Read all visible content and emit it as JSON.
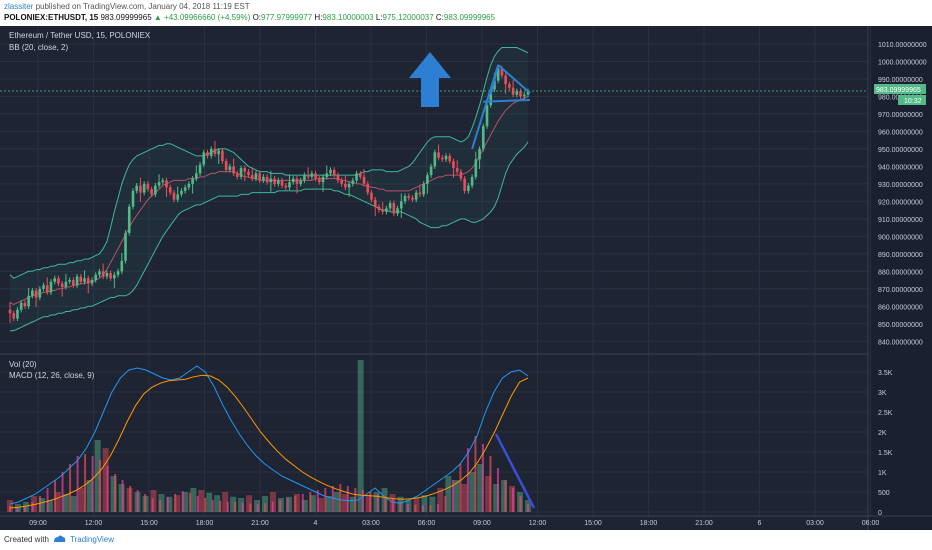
{
  "header": {
    "author": "zlassiter",
    "published_text": "published on TradingView.com, January 04, 2018 11:19 EST",
    "symbol": "POLONIEX:ETHUSDT, 15",
    "last": "983.09999965",
    "change": "▲ +43.09966660 (+4.59%)",
    "o_label": "O:",
    "o_value": "977.97999977",
    "h_label": "H:",
    "h_value": "983.10000003",
    "l_label": "L:",
    "l_value": "975.12000037",
    "c_label": "C:",
    "c_value": "983.09999965"
  },
  "panes": {
    "price": {
      "title": "Ethereum / Tether USD, 15, POLONIEX",
      "indicator": "BB (20, close, 2)",
      "price_tag": "983.09999965",
      "time_tag": "10:32"
    },
    "volume": {
      "title": "Vol (20)",
      "indicator": "MACD (12, 26, close, 9)"
    }
  },
  "footer": {
    "created_with": "Created with",
    "brand": "TradingView"
  },
  "colors": {
    "background": "#1f2433",
    "up": "#53b987",
    "down": "#eb4d5c",
    "bb_band": "#3fb6a0",
    "bb_basis": "#b4536a",
    "macd": "#2196f3",
    "signal": "#ff9800",
    "annotation": "#2e7fd4",
    "hist_pink": "#ea3f9a"
  },
  "annotation": {
    "arrow": "up-arrow-icon"
  },
  "chart_data": [
    {
      "type": "candlestick",
      "pane": "price",
      "ylim": [
        835,
        1018
      ],
      "y_ticks": [
        840,
        850,
        860,
        870,
        880,
        890,
        900,
        910,
        920,
        930,
        940,
        950,
        960,
        970,
        980,
        990,
        1000,
        1010
      ],
      "y_tick_labels": [
        "840.00000000",
        "850.00000000",
        "860.00000000",
        "870.00000000",
        "880.00000000",
        "890.00000000",
        "900.00000000",
        "910.00000000",
        "920.00000000",
        "930.00000000",
        "940.00000000",
        "950.00000000",
        "960.00000000",
        "970.00000000",
        "980.00000000",
        "990.00000000",
        "1000.00000000",
        "1010.00000000"
      ],
      "x_tick_labels": [
        "09:00",
        "12:00",
        "15:00",
        "18:00",
        "21:00",
        "4",
        "03:00",
        "06:00",
        "09:00",
        "12:00",
        "15:00",
        "18:00",
        "21:00",
        "6",
        "03:00",
        "06:00"
      ],
      "closes": [
        856,
        853,
        858,
        862,
        860,
        866,
        869,
        865,
        870,
        872,
        868,
        874,
        876,
        873,
        871,
        874,
        875,
        872,
        877,
        874,
        876,
        873,
        875,
        878,
        880,
        877,
        879,
        876,
        878,
        880,
        886,
        902,
        917,
        926,
        929,
        925,
        930,
        927,
        924,
        929,
        931,
        932,
        928,
        925,
        921,
        924,
        926,
        928,
        930,
        933,
        936,
        941,
        948,
        946,
        950,
        947,
        949,
        943,
        938,
        940,
        936,
        934,
        939,
        937,
        935,
        933,
        936,
        932,
        934,
        931,
        933,
        930,
        932,
        929,
        928,
        931,
        933,
        930,
        932,
        935,
        934,
        936,
        933,
        931,
        934,
        936,
        938,
        935,
        932,
        930,
        928,
        930,
        932,
        936,
        934,
        930,
        925,
        921,
        917,
        915,
        914,
        916,
        919,
        913,
        916,
        920,
        923,
        922,
        921,
        925,
        924,
        930,
        935,
        940,
        948,
        945,
        944,
        946,
        943,
        939,
        937,
        933,
        926,
        929,
        934,
        944,
        950,
        963,
        975,
        984,
        989,
        996,
        992,
        987,
        985,
        981,
        983,
        980,
        981,
        983
      ],
      "bb_upper": [
        878,
        876,
        877,
        878,
        879,
        880,
        880,
        881,
        881,
        882,
        882,
        883,
        883,
        884,
        884,
        884,
        885,
        885,
        886,
        886,
        887,
        887,
        888,
        889,
        890,
        893,
        897,
        905,
        914,
        922,
        930,
        936,
        941,
        944,
        946,
        947,
        948,
        949,
        950,
        951,
        952,
        952,
        953,
        953,
        952,
        951,
        950,
        949,
        948,
        947,
        946,
        946,
        946,
        947,
        948,
        949,
        950,
        950,
        950,
        949,
        948,
        946,
        944,
        942,
        940,
        939,
        938,
        937,
        937,
        937,
        936,
        936,
        936,
        936,
        935,
        935,
        935,
        935,
        935,
        935,
        935,
        935,
        935,
        935,
        935,
        935,
        935,
        935,
        935,
        935,
        935,
        935,
        935,
        935,
        936,
        937,
        937,
        938,
        938,
        938,
        938,
        937,
        937,
        937,
        937,
        938,
        939,
        940,
        942,
        945,
        948,
        951,
        954,
        956,
        957,
        957,
        957,
        957,
        957,
        956,
        955,
        954,
        955,
        957,
        962,
        968,
        975,
        983,
        991,
        998,
        1003,
        1006,
        1008,
        1008,
        1008,
        1008,
        1008,
        1007,
        1006,
        1005
      ],
      "bb_basis": [
        862,
        861,
        862,
        863,
        864,
        865,
        866,
        867,
        867,
        868,
        868,
        869,
        869,
        870,
        870,
        871,
        871,
        872,
        872,
        873,
        873,
        874,
        874,
        875,
        876,
        878,
        881,
        885,
        889,
        893,
        897,
        901,
        905,
        909,
        912,
        915,
        918,
        921,
        923,
        925,
        927,
        929,
        930,
        931,
        932,
        932,
        932,
        932,
        933,
        933,
        933,
        934,
        934,
        935,
        936,
        936,
        937,
        937,
        937,
        937,
        937,
        936,
        935,
        934,
        934,
        933,
        933,
        932,
        932,
        932,
        932,
        932,
        932,
        932,
        932,
        932,
        932,
        932,
        932,
        932,
        932,
        932,
        933,
        933,
        933,
        933,
        933,
        933,
        933,
        932,
        932,
        931,
        931,
        930,
        930,
        929,
        929,
        928,
        928,
        927,
        927,
        926,
        926,
        926,
        926,
        926,
        926,
        926,
        927,
        928,
        929,
        930,
        931,
        932,
        933,
        934,
        934,
        935,
        935,
        935,
        935,
        935,
        936,
        937,
        939,
        942,
        946,
        950,
        954,
        958,
        962,
        966,
        969,
        972,
        974,
        976,
        977,
        978,
        979,
        980
      ],
      "bb_lower": [
        846,
        846,
        847,
        848,
        849,
        850,
        851,
        852,
        853,
        854,
        854,
        855,
        855,
        856,
        856,
        857,
        857,
        858,
        858,
        859,
        859,
        860,
        860,
        861,
        862,
        863,
        864,
        865,
        865,
        866,
        866,
        866,
        867,
        869,
        872,
        876,
        880,
        884,
        888,
        892,
        896,
        900,
        903,
        906,
        909,
        912,
        914,
        915,
        916,
        917,
        918,
        918,
        919,
        920,
        921,
        922,
        923,
        923,
        923,
        923,
        923,
        923,
        924,
        924,
        924,
        925,
        925,
        925,
        925,
        925,
        925,
        925,
        926,
        926,
        926,
        926,
        926,
        926,
        926,
        927,
        927,
        927,
        927,
        927,
        927,
        927,
        927,
        926,
        926,
        925,
        924,
        924,
        923,
        922,
        921,
        920,
        919,
        918,
        917,
        916,
        915,
        915,
        914,
        914,
        914,
        914,
        913,
        912,
        911,
        910,
        908,
        907,
        906,
        905,
        905,
        905,
        906,
        906,
        907,
        908,
        909,
        910,
        910,
        909,
        908,
        908,
        909,
        910,
        912,
        914,
        917,
        922,
        929,
        936,
        941,
        944,
        947,
        949,
        951,
        954
      ]
    },
    {
      "type": "line",
      "pane": "volume",
      "ylim": [
        0,
        3800
      ],
      "y_ticks": [
        0,
        500,
        1000,
        1500,
        2000,
        2500,
        3000,
        3500
      ],
      "y_tick_labels": [
        "0",
        "500",
        "1K",
        "1.5K",
        "2K",
        "2.5K",
        "3K",
        "3.5K"
      ],
      "series": [
        {
          "key": "macd",
          "values": [
            200,
            250,
            350,
            450,
            600,
            750,
            900,
            1100,
            1300,
            1600,
            2000,
            2500,
            3000,
            3350,
            3550,
            3600,
            3550,
            3450,
            3350,
            3300,
            3350,
            3500,
            3650,
            3500,
            3150,
            2700,
            2300,
            1950,
            1650,
            1400,
            1200,
            1050,
            900,
            800,
            700,
            600,
            500,
            400,
            350,
            300,
            280,
            300,
            450,
            600,
            400,
            250,
            220,
            300,
            400,
            550,
            700,
            850,
            1000,
            1200,
            1500,
            1900,
            2500,
            3000,
            3350,
            3500,
            3550,
            3400
          ]
        },
        {
          "key": "signal",
          "values": [
            100,
            120,
            150,
            190,
            240,
            300,
            370,
            450,
            550,
            680,
            850,
            1080,
            1400,
            1800,
            2250,
            2650,
            2950,
            3120,
            3220,
            3280,
            3300,
            3320,
            3380,
            3420,
            3400,
            3300,
            3120,
            2880,
            2600,
            2300,
            2000,
            1750,
            1520,
            1320,
            1160,
            1000,
            870,
            760,
            660,
            580,
            510,
            450,
            420,
            410,
            390,
            360,
            330,
            320,
            330,
            360,
            410,
            480,
            560,
            660,
            800,
            980,
            1250,
            1600,
            2000,
            2450,
            2900,
            3250,
            3350
          ]
        },
        {
          "key": "histogram",
          "values": [
            150,
            100,
            120,
            250,
            400,
            600,
            800,
            1000,
            1200,
            1400,
            1450,
            1400,
            1300,
            1150,
            950,
            800,
            650,
            550,
            450,
            350,
            300,
            380,
            450,
            520,
            480,
            400,
            350,
            300,
            280,
            260,
            250,
            230,
            210,
            200,
            220,
            260,
            300,
            350,
            400,
            450,
            500,
            550,
            600,
            650,
            700,
            650,
            600,
            550,
            500,
            450,
            380,
            320,
            260,
            200,
            180,
            160,
            170,
            200,
            400,
            800,
            1200,
            1600,
            1900,
            1700,
            1400,
            1100,
            800,
            600,
            400,
            200
          ]
        },
        {
          "key": "volume",
          "values": [
            300,
            200,
            250,
            400,
            350,
            300,
            500,
            450,
            400,
            600,
            800,
            1800,
            1600,
            900,
            700,
            600,
            500,
            400,
            550,
            450,
            380,
            420,
            500,
            600,
            550,
            480,
            420,
            500,
            380,
            350,
            420,
            300,
            400,
            500,
            350,
            380,
            450,
            300,
            420,
            350,
            400,
            500,
            450,
            380,
            3800,
            400,
            500,
            600,
            450,
            380,
            300,
            350,
            420,
            380,
            600,
            900,
            800,
            700,
            1000,
            1200,
            900,
            700,
            800,
            650,
            500,
            300
          ]
        }
      ],
      "drawn_line": [
        [
          1900,
          0
        ],
        [
          100,
          1
        ]
      ]
    }
  ]
}
